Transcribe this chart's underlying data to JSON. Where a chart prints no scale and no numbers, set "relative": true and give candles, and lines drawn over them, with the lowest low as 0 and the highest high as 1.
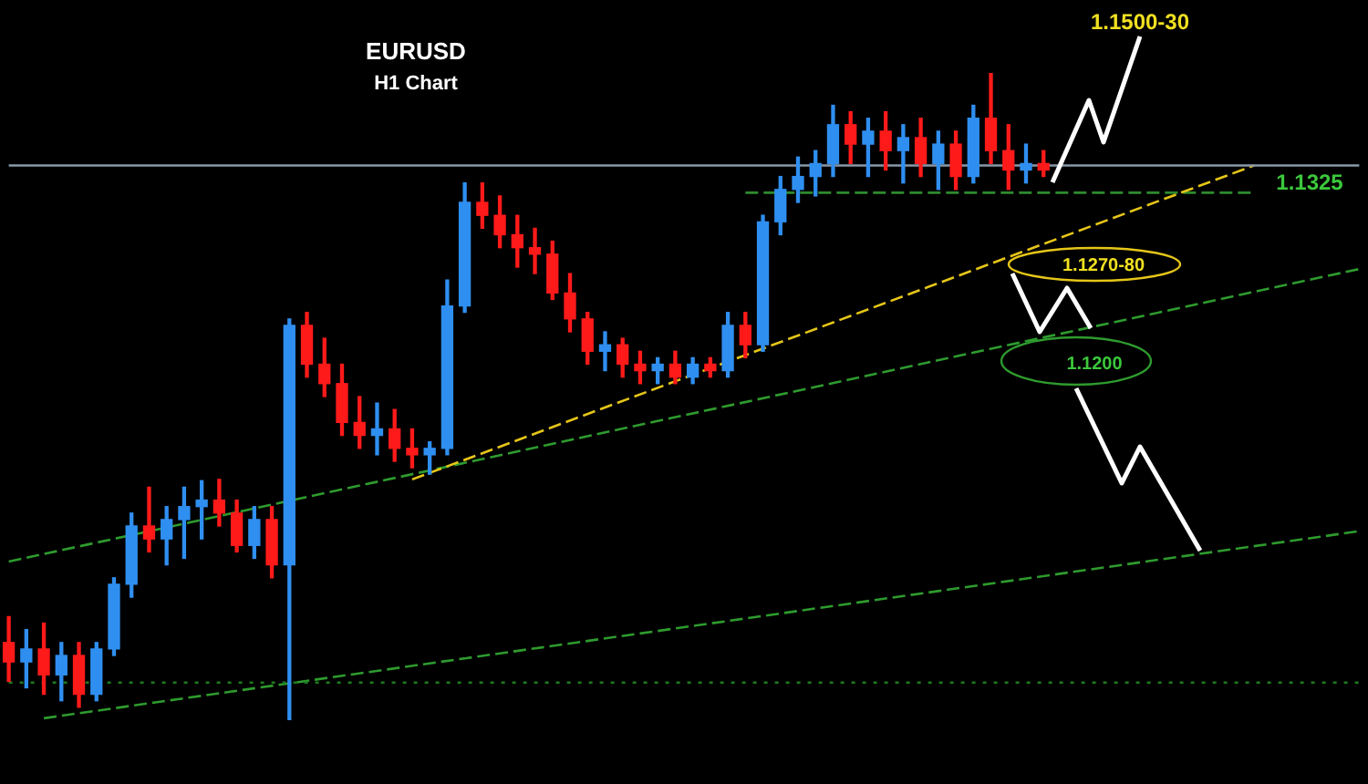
{
  "chart_data": {
    "type": "candlestick",
    "title": "EURUSD",
    "subtitle": "H1 Chart",
    "relative": true,
    "legend": false,
    "marker": "none",
    "annotations": [
      "1.1500-30",
      "1.1325",
      "1.1270-80",
      "1.1200"
    ],
    "categories": [
      null,
      null,
      null,
      null,
      null,
      null,
      null,
      null,
      null,
      null,
      null,
      null,
      null,
      null,
      null,
      null,
      null,
      null,
      null,
      null,
      null,
      null,
      null,
      null,
      null,
      null,
      null,
      null,
      null,
      null,
      null,
      null,
      null,
      null,
      null,
      null,
      null,
      null,
      null,
      null,
      null,
      null,
      null,
      null,
      null,
      null,
      null,
      null,
      null,
      null,
      null,
      null,
      null,
      null,
      null,
      null,
      null,
      null,
      null,
      null,
      null,
      null,
      null,
      null,
      null,
      null,
      null,
      null,
      null,
      null,
      null,
      null,
      null,
      null,
      null,
      null,
      null,
      null
    ],
    "ohlc": [
      [
        0.12,
        0.16,
        0.06,
        0.09
      ],
      [
        0.09,
        0.14,
        0.05,
        0.11
      ],
      [
        0.11,
        0.15,
        0.04,
        0.07
      ],
      [
        0.07,
        0.12,
        0.03,
        0.1
      ],
      [
        0.1,
        0.12,
        0.02,
        0.04
      ],
      [
        0.04,
        0.12,
        0.03,
        0.11
      ],
      [
        0.11,
        0.22,
        0.1,
        0.21
      ],
      [
        0.21,
        0.32,
        0.19,
        0.3
      ],
      [
        0.3,
        0.36,
        0.26,
        0.28
      ],
      [
        0.28,
        0.33,
        0.24,
        0.31
      ],
      [
        0.31,
        0.36,
        0.25,
        0.33
      ],
      [
        0.33,
        0.37,
        0.28,
        0.34
      ],
      [
        0.34,
        0.372,
        0.3,
        0.32
      ],
      [
        0.32,
        0.34,
        0.26,
        0.27
      ],
      [
        0.27,
        0.33,
        0.25,
        0.31
      ],
      [
        0.31,
        0.33,
        0.22,
        0.24
      ],
      [
        0.24,
        0.62,
        0,
        0.61
      ],
      [
        0.61,
        0.63,
        0.53,
        0.55
      ],
      [
        0.55,
        0.59,
        0.5,
        0.52
      ],
      [
        0.52,
        0.55,
        0.44,
        0.46
      ],
      [
        0.46,
        0.5,
        0.42,
        0.44
      ],
      [
        0.44,
        0.49,
        0.41,
        0.45
      ],
      [
        0.45,
        0.48,
        0.4,
        0.42
      ],
      [
        0.42,
        0.45,
        0.39,
        0.41
      ],
      [
        0.41,
        0.43,
        0.38,
        0.42
      ],
      [
        0.42,
        0.68,
        0.41,
        0.64
      ],
      [
        0.64,
        0.83,
        0.63,
        0.8
      ],
      [
        0.8,
        0.83,
        0.76,
        0.78
      ],
      [
        0.78,
        0.81,
        0.73,
        0.75
      ],
      [
        0.75,
        0.78,
        0.7,
        0.73
      ],
      [
        0.73,
        0.76,
        0.69,
        0.72
      ],
      [
        0.72,
        0.74,
        0.65,
        0.66
      ],
      [
        0.66,
        0.69,
        0.6,
        0.62
      ],
      [
        0.62,
        0.63,
        0.55,
        0.57
      ],
      [
        0.57,
        0.6,
        0.54,
        0.58
      ],
      [
        0.58,
        0.59,
        0.53,
        0.55
      ],
      [
        0.55,
        0.57,
        0.52,
        0.54
      ],
      [
        0.54,
        0.56,
        0.52,
        0.55
      ],
      [
        0.55,
        0.57,
        0.52,
        0.53
      ],
      [
        0.53,
        0.56,
        0.52,
        0.55
      ],
      [
        0.55,
        0.56,
        0.53,
        0.54
      ],
      [
        0.54,
        0.63,
        0.53,
        0.61
      ],
      [
        0.61,
        0.63,
        0.56,
        0.58
      ],
      [
        0.58,
        0.78,
        0.57,
        0.77
      ],
      [
        0.77,
        0.84,
        0.75,
        0.82
      ],
      [
        0.82,
        0.87,
        0.8,
        0.84
      ],
      [
        0.84,
        0.88,
        0.81,
        0.86
      ],
      [
        0.86,
        0.95,
        0.84,
        0.92
      ],
      [
        0.92,
        0.94,
        0.86,
        0.89
      ],
      [
        0.89,
        0.93,
        0.84,
        0.91
      ],
      [
        0.91,
        0.94,
        0.85,
        0.88
      ],
      [
        0.88,
        0.92,
        0.83,
        0.9
      ],
      [
        0.9,
        0.93,
        0.84,
        0.86
      ],
      [
        0.86,
        0.91,
        0.82,
        0.89
      ],
      [
        0.89,
        0.91,
        0.82,
        0.84
      ],
      [
        0.84,
        0.95,
        0.83,
        0.93
      ],
      [
        0.93,
        1,
        0.86,
        0.88
      ],
      [
        0.88,
        0.92,
        0.82,
        0.85
      ],
      [
        0.85,
        0.89,
        0.83,
        0.86
      ],
      [
        0.86,
        0.88,
        0.84,
        0.85
      ],
      null,
      null,
      null,
      null,
      null,
      null,
      null,
      null,
      null,
      null,
      null,
      null,
      null,
      null,
      null,
      null,
      null,
      null
    ],
    "colors": [
      "#ff1a1a",
      "#2f8ff0",
      "#ff1a1a",
      "#2f8ff0",
      "#ff1a1a",
      "#2f8ff0",
      "#2f8ff0",
      "#2f8ff0",
      "#ff1a1a",
      "#2f8ff0",
      "#2f8ff0",
      "#2f8ff0",
      "#ff1a1a",
      "#ff1a1a",
      "#2f8ff0",
      "#ff1a1a",
      "#2f8ff0",
      "#ff1a1a",
      "#ff1a1a",
      "#ff1a1a",
      "#ff1a1a",
      "#2f8ff0",
      "#ff1a1a",
      "#ff1a1a",
      "#2f8ff0",
      "#2f8ff0",
      "#2f8ff0",
      "#ff1a1a",
      "#ff1a1a",
      "#ff1a1a",
      "#ff1a1a",
      "#ff1a1a",
      "#ff1a1a",
      "#ff1a1a",
      "#2f8ff0",
      "#ff1a1a",
      "#ff1a1a",
      "#2f8ff0",
      "#ff1a1a",
      "#2f8ff0",
      "#ff1a1a",
      "#2f8ff0",
      "#ff1a1a",
      "#2f8ff0",
      "#2f8ff0",
      "#2f8ff0",
      "#2f8ff0",
      "#2f8ff0",
      "#ff1a1a",
      "#2f8ff0",
      "#ff1a1a",
      "#2f8ff0",
      "#ff1a1a",
      "#2f8ff0",
      "#ff1a1a",
      "#2f8ff0",
      "#ff1a1a",
      "#ff1a1a",
      "#2f8ff0",
      "#ff1a1a",
      null,
      null,
      null,
      null,
      null,
      null,
      null,
      null,
      null,
      null,
      null,
      null,
      null,
      null,
      null,
      null,
      null,
      null
    ],
    "series": [
      {
        "type": "line",
        "color": "#8899aa",
        "line_style": "solid",
        "values": [
          0.857,
          null,
          null,
          null,
          null,
          null,
          null,
          null,
          null,
          null,
          null,
          null,
          null,
          null,
          null,
          null,
          null,
          null,
          null,
          null,
          null,
          null,
          null,
          null,
          null,
          null,
          null,
          null,
          null,
          null,
          null,
          null,
          null,
          null,
          null,
          null,
          null,
          null,
          null,
          null,
          null,
          null,
          null,
          null,
          null,
          null,
          null,
          null,
          null,
          null,
          null,
          null,
          null,
          null,
          null,
          null,
          null,
          null,
          null,
          null,
          null,
          null,
          null,
          null,
          null,
          null,
          null,
          null,
          null,
          null,
          null,
          null,
          null,
          null,
          null,
          null,
          null,
          0.857
        ]
      },
      {
        "type": "line",
        "color": "#1f7a1f",
        "line_style": "dotted",
        "values": [
          0.058,
          null,
          null,
          null,
          null,
          null,
          null,
          null,
          null,
          null,
          null,
          null,
          null,
          null,
          null,
          null,
          null,
          null,
          null,
          null,
          null,
          null,
          null,
          null,
          null,
          null,
          null,
          null,
          null,
          null,
          null,
          null,
          null,
          null,
          null,
          null,
          null,
          null,
          null,
          null,
          null,
          null,
          null,
          null,
          null,
          null,
          null,
          null,
          null,
          null,
          null,
          null,
          null,
          null,
          null,
          null,
          null,
          null,
          null,
          null,
          null,
          null,
          null,
          null,
          null,
          null,
          null,
          null,
          null,
          null,
          null,
          null,
          null,
          null,
          null,
          null,
          null,
          0.058
        ]
      },
      {
        "type": "line",
        "color": "#e6c619",
        "line_style": "dashed",
        "values": [
          null,
          null,
          null,
          null,
          null,
          null,
          null,
          null,
          null,
          null,
          null,
          null,
          null,
          null,
          null,
          null,
          null,
          null,
          null,
          null,
          null,
          null,
          null,
          0.372,
          null,
          null,
          null,
          null,
          null,
          null,
          null,
          null,
          null,
          null,
          null,
          null,
          null,
          null,
          null,
          null,
          null,
          null,
          null,
          null,
          null,
          null,
          null,
          null,
          null,
          null,
          null,
          null,
          null,
          null,
          null,
          null,
          null,
          null,
          null,
          null,
          null,
          null,
          null,
          null,
          null,
          null,
          null,
          null,
          null,
          null,
          null,
          0.857,
          null,
          null,
          null,
          null,
          null,
          null
        ]
      },
      {
        "type": "line",
        "color": "#2e9b2e",
        "line_style": "dashed",
        "values": [
          0.245,
          null,
          null,
          null,
          null,
          null,
          null,
          null,
          null,
          null,
          null,
          null,
          null,
          null,
          null,
          null,
          null,
          null,
          null,
          null,
          null,
          null,
          null,
          null,
          null,
          null,
          null,
          null,
          null,
          null,
          null,
          null,
          null,
          null,
          null,
          null,
          null,
          null,
          null,
          null,
          null,
          null,
          null,
          null,
          null,
          null,
          null,
          null,
          null,
          null,
          null,
          null,
          null,
          null,
          null,
          null,
          null,
          null,
          null,
          null,
          null,
          null,
          null,
          null,
          null,
          null,
          null,
          null,
          null,
          null,
          null,
          null,
          null,
          null,
          null,
          null,
          null,
          0.697
        ]
      },
      {
        "type": "line",
        "color": "#2e9b2e",
        "line_style": "dashed",
        "values": [
          null,
          null,
          0.003,
          null,
          null,
          null,
          null,
          null,
          null,
          null,
          null,
          null,
          null,
          null,
          null,
          null,
          null,
          null,
          null,
          null,
          null,
          null,
          null,
          null,
          null,
          null,
          null,
          null,
          null,
          null,
          null,
          null,
          null,
          null,
          null,
          null,
          null,
          null,
          null,
          null,
          null,
          null,
          null,
          null,
          null,
          null,
          null,
          null,
          null,
          null,
          null,
          null,
          null,
          null,
          null,
          null,
          null,
          null,
          null,
          null,
          null,
          null,
          null,
          null,
          null,
          null,
          null,
          null,
          null,
          null,
          null,
          null,
          null,
          null,
          null,
          null,
          null,
          0.292
        ]
      },
      {
        "type": "line",
        "color": "#2e8b2e",
        "line_style": "dashed",
        "values": [
          null,
          null,
          null,
          null,
          null,
          null,
          null,
          null,
          null,
          null,
          null,
          null,
          null,
          null,
          null,
          null,
          null,
          null,
          null,
          null,
          null,
          null,
          null,
          null,
          null,
          null,
          null,
          null,
          null,
          null,
          null,
          null,
          null,
          null,
          null,
          null,
          null,
          null,
          null,
          null,
          null,
          null,
          0.815,
          null,
          null,
          null,
          null,
          null,
          null,
          null,
          null,
          null,
          null,
          null,
          null,
          null,
          null,
          null,
          null,
          null,
          null,
          null,
          null,
          null,
          null,
          null,
          null,
          null,
          null,
          null,
          null,
          0.815,
          null,
          null,
          null,
          null,
          null,
          null
        ]
      }
    ]
  }
}
